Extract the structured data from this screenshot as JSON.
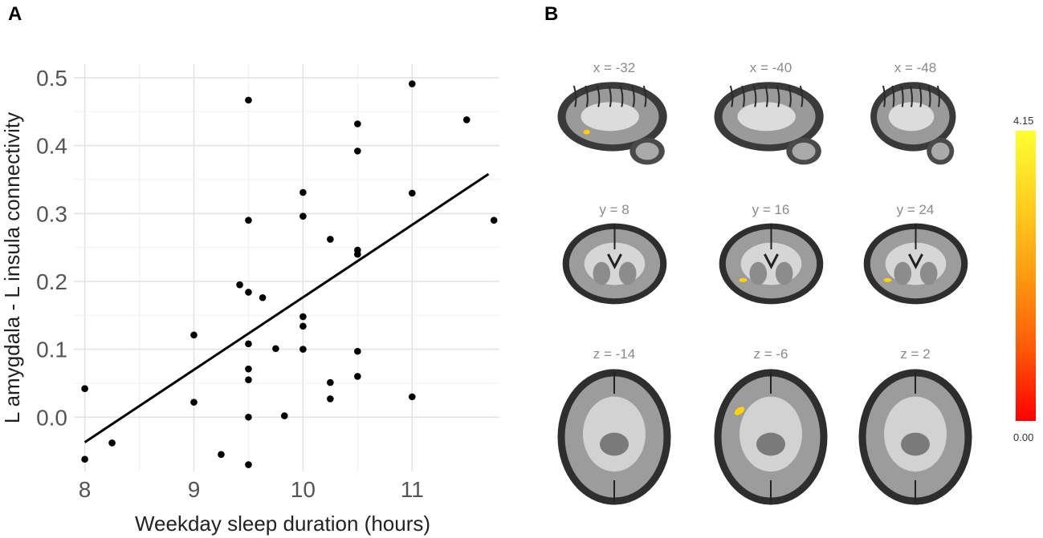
{
  "panels": {
    "a": "A",
    "b": "B"
  },
  "chart_data": {
    "type": "scatter",
    "xlabel": "Weekday sleep duration (hours)",
    "ylabel": "L amygdala - L insula connectivity",
    "xlim": [
      7.9,
      11.8
    ],
    "ylim": [
      -0.08,
      0.52
    ],
    "xticks": [
      8,
      9,
      10,
      11
    ],
    "yticks": [
      0.0,
      0.1,
      0.2,
      0.3,
      0.4,
      0.5
    ],
    "ytick_labels": [
      "0.0",
      "0.1",
      "0.2",
      "0.3",
      "0.4",
      "0.5"
    ],
    "grid": true,
    "points": [
      [
        8.0,
        0.042
      ],
      [
        8.0,
        -0.062
      ],
      [
        8.25,
        -0.038
      ],
      [
        9.0,
        0.121
      ],
      [
        9.0,
        0.022
      ],
      [
        9.25,
        -0.055
      ],
      [
        9.42,
        0.195
      ],
      [
        9.5,
        0.467
      ],
      [
        9.5,
        0.29
      ],
      [
        9.5,
        0.184
      ],
      [
        9.5,
        0.108
      ],
      [
        9.5,
        0.071
      ],
      [
        9.5,
        0.055
      ],
      [
        9.5,
        0.0
      ],
      [
        9.5,
        -0.07
      ],
      [
        9.63,
        0.176
      ],
      [
        9.75,
        0.101
      ],
      [
        9.83,
        0.002
      ],
      [
        10.0,
        0.331
      ],
      [
        10.0,
        0.296
      ],
      [
        10.0,
        0.148
      ],
      [
        10.0,
        0.134
      ],
      [
        10.0,
        0.1
      ],
      [
        10.25,
        0.262
      ],
      [
        10.25,
        0.051
      ],
      [
        10.25,
        0.027
      ],
      [
        10.5,
        0.432
      ],
      [
        10.5,
        0.392
      ],
      [
        10.5,
        0.246
      ],
      [
        10.5,
        0.24
      ],
      [
        10.5,
        0.097
      ],
      [
        10.5,
        0.06
      ],
      [
        11.0,
        0.491
      ],
      [
        11.0,
        0.33
      ],
      [
        11.0,
        0.03
      ],
      [
        11.5,
        0.438
      ],
      [
        11.75,
        0.29
      ]
    ],
    "fit_line": {
      "x": [
        8.0,
        11.7
      ],
      "y": [
        -0.037,
        0.358
      ]
    }
  },
  "brain_panel": {
    "slices": [
      {
        "label": "x = -32",
        "view": "sagittal",
        "highlight": true
      },
      {
        "label": "x = -40",
        "view": "sagittal",
        "highlight": false
      },
      {
        "label": "x = -48",
        "view": "sagittal",
        "highlight": false
      },
      {
        "label": "y = 8",
        "view": "coronal",
        "highlight": false
      },
      {
        "label": "y = 16",
        "view": "coronal",
        "highlight": true
      },
      {
        "label": "y = 24",
        "view": "coronal",
        "highlight": true
      },
      {
        "label": "z = -14",
        "view": "axial",
        "highlight": false
      },
      {
        "label": "z = -6",
        "view": "axial",
        "highlight": true
      },
      {
        "label": "z = 2",
        "view": "axial",
        "highlight": false
      }
    ],
    "colorbar": {
      "max_label": "4.15",
      "min_label": "0.00",
      "top_color": "#ffff30",
      "bottom_color": "#ff0000"
    }
  }
}
